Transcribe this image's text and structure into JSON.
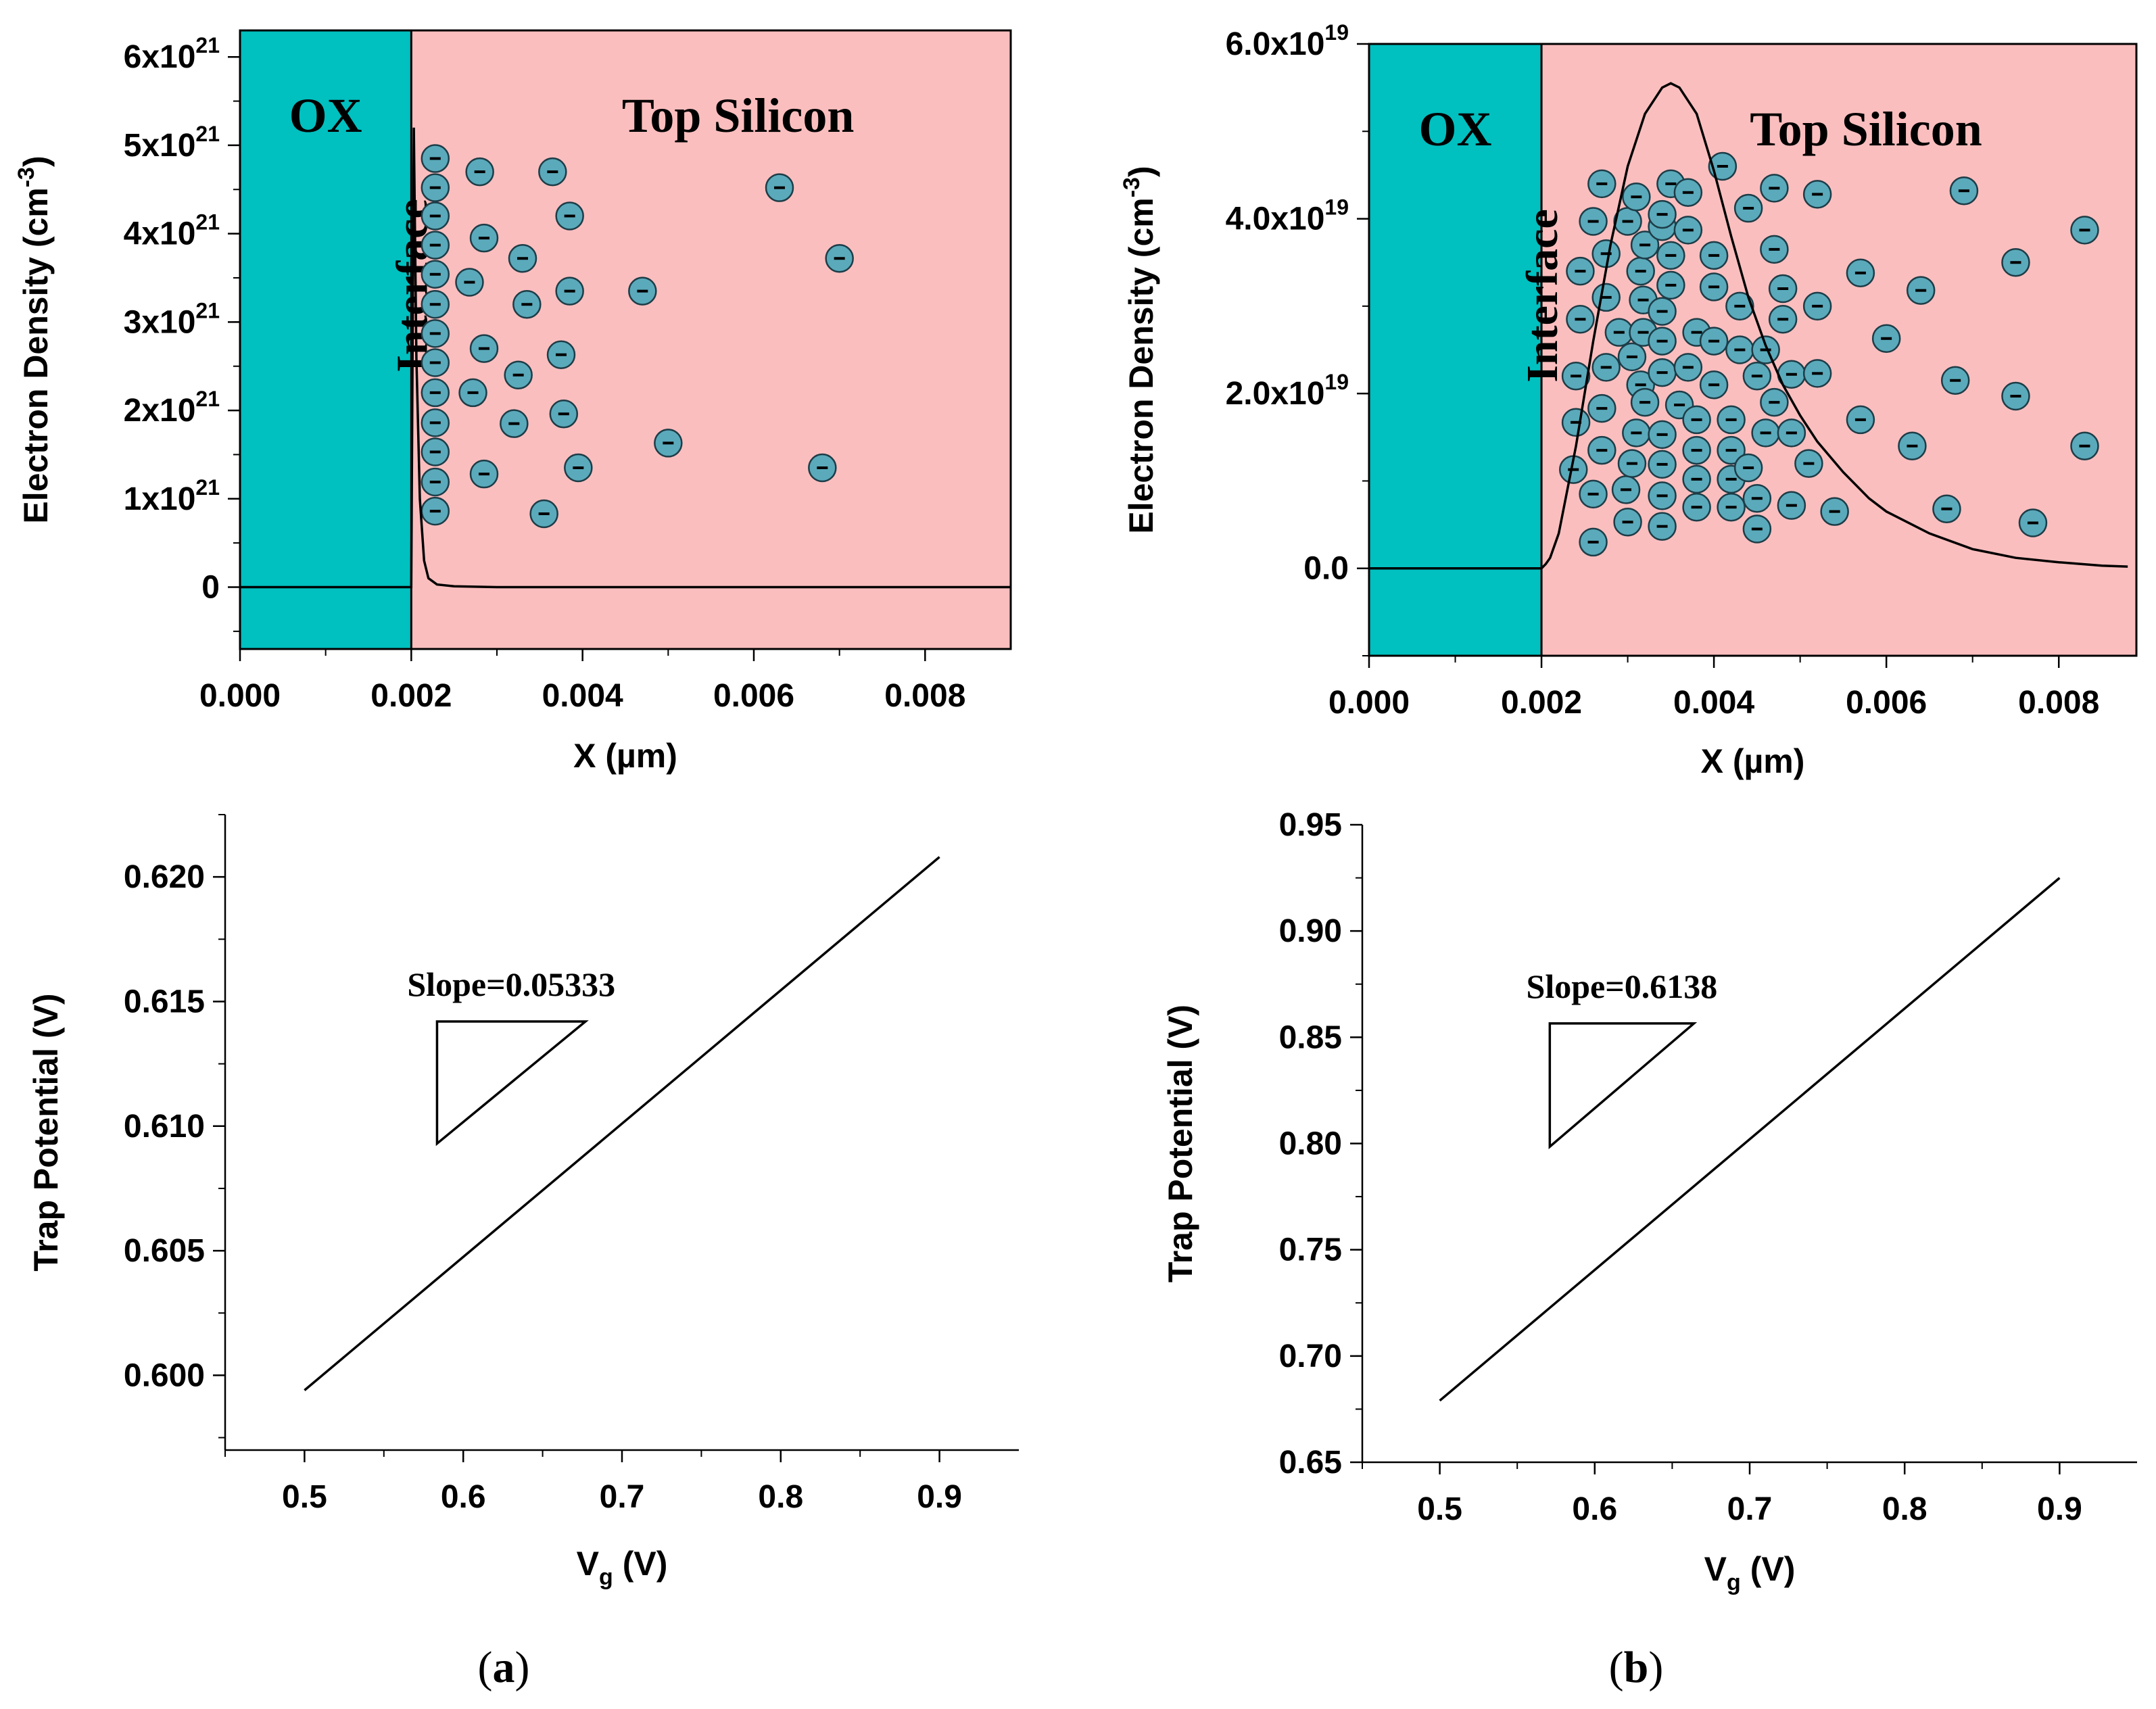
{
  "colors": {
    "oxide": "#00c0c0",
    "silicon": "#fbbebe",
    "electron": "#5aaabb",
    "line": "#000000"
  },
  "chart_data": [
    {
      "id": "a-top",
      "type": "line",
      "xlabel": "X (µm)",
      "ylabel_main": "Electron Density (cm",
      "ylabel_sup": "-3",
      "ylabel_end": ")",
      "xlim": [
        0,
        0.009
      ],
      "ylim": [
        -0.7,
        6.3
      ],
      "x_ticks": [
        0.0,
        0.002,
        0.004,
        0.006,
        0.008
      ],
      "x_tick_labels": [
        "0.000",
        "0.002",
        "0.004",
        "0.006",
        "0.008"
      ],
      "y_ticks": [
        0,
        1,
        2,
        3,
        4,
        5,
        6
      ],
      "y_tick_labels": [
        {
          "base": "0",
          "sup": ""
        },
        {
          "base": "1x10",
          "sup": "21"
        },
        {
          "base": "2x10",
          "sup": "21"
        },
        {
          "base": "3x10",
          "sup": "21"
        },
        {
          "base": "4x10",
          "sup": "21"
        },
        {
          "base": "5x10",
          "sup": "21"
        },
        {
          "base": "6x10",
          "sup": "21"
        }
      ],
      "y_unit": "1e21 cm^-3",
      "regions": [
        {
          "label": "OX",
          "x": [
            0,
            0.002
          ],
          "fill": "#00c0c0"
        },
        {
          "label": "Top Silicon",
          "x": [
            0.002,
            0.009
          ],
          "fill": "#fbbebe"
        }
      ],
      "interface_label": "Interface",
      "series": [
        {
          "name": "Electron density",
          "x": [
            0,
            0.002,
            0.00203,
            0.00206,
            0.0021,
            0.00215,
            0.0022,
            0.0023,
            0.0025,
            0.003,
            0.009
          ],
          "y": [
            0,
            0,
            5.2,
            2.6,
            1.0,
            0.3,
            0.1,
            0.03,
            0.01,
            0.0,
            0.0
          ]
        }
      ],
      "electrons": [
        [
          0.00228,
          4.85
        ],
        [
          0.00228,
          4.52
        ],
        [
          0.00228,
          4.2
        ],
        [
          0.00228,
          3.87
        ],
        [
          0.00228,
          3.54
        ],
        [
          0.00228,
          3.2
        ],
        [
          0.00228,
          2.87
        ],
        [
          0.00228,
          2.54
        ],
        [
          0.00228,
          2.2
        ],
        [
          0.00228,
          1.86
        ],
        [
          0.00228,
          1.53
        ],
        [
          0.00228,
          1.19
        ],
        [
          0.00228,
          0.86
        ],
        [
          0.0028,
          4.7
        ],
        [
          0.00365,
          4.7
        ],
        [
          0.00285,
          3.95
        ],
        [
          0.00385,
          4.2
        ],
        [
          0.0033,
          3.72
        ],
        [
          0.00268,
          3.45
        ],
        [
          0.00335,
          3.2
        ],
        [
          0.00385,
          3.35
        ],
        [
          0.00285,
          2.7
        ],
        [
          0.00375,
          2.63
        ],
        [
          0.00325,
          2.4
        ],
        [
          0.00272,
          2.2
        ],
        [
          0.00378,
          1.96
        ],
        [
          0.0032,
          1.85
        ],
        [
          0.00285,
          1.28
        ],
        [
          0.00395,
          1.35
        ],
        [
          0.00355,
          0.83
        ],
        [
          0.0047,
          3.35
        ],
        [
          0.005,
          1.63
        ],
        [
          0.0063,
          4.52
        ],
        [
          0.007,
          3.72
        ],
        [
          0.0068,
          1.35
        ]
      ]
    },
    {
      "id": "b-top",
      "type": "line",
      "xlabel": "X (µm)",
      "ylabel_main": "Electron Density (cm",
      "ylabel_sup": "-3",
      "ylabel_end": ")",
      "xlim": [
        0,
        0.0089
      ],
      "ylim": [
        -1.0,
        6.0
      ],
      "x_ticks": [
        0.0,
        0.002,
        0.004,
        0.006,
        0.008
      ],
      "x_tick_labels": [
        "0.000",
        "0.002",
        "0.004",
        "0.006",
        "0.008"
      ],
      "y_ticks": [
        0,
        2,
        4,
        6
      ],
      "y_tick_labels": [
        {
          "base": "0.0",
          "sup": ""
        },
        {
          "base": "2.0x10",
          "sup": "19"
        },
        {
          "base": "4.0x10",
          "sup": "19"
        },
        {
          "base": "6.0x10",
          "sup": "19"
        }
      ],
      "y_unit": "1e19 cm^-3",
      "regions": [
        {
          "label": "OX",
          "x": [
            0,
            0.002
          ],
          "fill": "#00c0c0"
        },
        {
          "label": "Top Silicon",
          "x": [
            0.002,
            0.0089
          ],
          "fill": "#fbbebe"
        }
      ],
      "interface_label": "Interface",
      "series": [
        {
          "name": "Electron density",
          "x": [
            0,
            0.002,
            0.00205,
            0.0021,
            0.0022,
            0.0024,
            0.0026,
            0.0028,
            0.003,
            0.0032,
            0.0034,
            0.0035,
            0.0036,
            0.0038,
            0.004,
            0.0042,
            0.0044,
            0.0046,
            0.0048,
            0.005,
            0.0052,
            0.0055,
            0.0058,
            0.006,
            0.0065,
            0.007,
            0.0075,
            0.008,
            0.0085,
            0.0088
          ],
          "y": [
            0,
            0,
            0.05,
            0.12,
            0.4,
            1.4,
            2.6,
            3.7,
            4.6,
            5.2,
            5.5,
            5.55,
            5.5,
            5.2,
            4.55,
            3.8,
            3.1,
            2.55,
            2.1,
            1.75,
            1.45,
            1.1,
            0.8,
            0.65,
            0.4,
            0.22,
            0.12,
            0.07,
            0.03,
            0.02
          ]
        }
      ],
      "electrons": [
        [
          0.00245,
          3.4
        ],
        [
          0.00245,
          2.85
        ],
        [
          0.0024,
          2.2
        ],
        [
          0.0024,
          1.67
        ],
        [
          0.00237,
          1.13
        ],
        [
          0.0026,
          0.3
        ],
        [
          0.0026,
          0.85
        ],
        [
          0.0026,
          3.97
        ],
        [
          0.0027,
          4.4
        ],
        [
          0.0027,
          1.35
        ],
        [
          0.0027,
          1.83
        ],
        [
          0.00275,
          2.3
        ],
        [
          0.00275,
          3.1
        ],
        [
          0.00275,
          3.6
        ],
        [
          0.0029,
          2.7
        ],
        [
          0.00298,
          0.9
        ],
        [
          0.003,
          0.53
        ],
        [
          0.003,
          3.97
        ],
        [
          0.00305,
          1.2
        ],
        [
          0.00305,
          2.42
        ],
        [
          0.0031,
          1.55
        ],
        [
          0.0031,
          4.25
        ],
        [
          0.00315,
          2.1
        ],
        [
          0.00315,
          3.4
        ],
        [
          0.00318,
          2.7
        ],
        [
          0.00318,
          3.07
        ],
        [
          0.0032,
          3.7
        ],
        [
          0.0032,
          1.9
        ],
        [
          0.0034,
          0.48
        ],
        [
          0.0034,
          0.83
        ],
        [
          0.0034,
          1.19
        ],
        [
          0.0034,
          1.53
        ],
        [
          0.0034,
          2.24
        ],
        [
          0.0034,
          2.6
        ],
        [
          0.0034,
          2.94
        ],
        [
          0.0035,
          3.24
        ],
        [
          0.0035,
          3.58
        ],
        [
          0.0034,
          3.91
        ],
        [
          0.0034,
          4.05
        ],
        [
          0.0035,
          4.4
        ],
        [
          0.0036,
          1.87
        ],
        [
          0.0037,
          2.3
        ],
        [
          0.0037,
          4.3
        ],
        [
          0.0037,
          3.87
        ],
        [
          0.0038,
          0.7
        ],
        [
          0.0038,
          1.02
        ],
        [
          0.0038,
          1.35
        ],
        [
          0.0038,
          1.7
        ],
        [
          0.0038,
          2.7
        ],
        [
          0.004,
          3.22
        ],
        [
          0.004,
          3.58
        ],
        [
          0.004,
          2.1
        ],
        [
          0.004,
          2.6
        ],
        [
          0.0041,
          4.6
        ],
        [
          0.0042,
          0.7
        ],
        [
          0.0042,
          1.02
        ],
        [
          0.0042,
          1.35
        ],
        [
          0.0042,
          1.7
        ],
        [
          0.0043,
          2.5
        ],
        [
          0.0043,
          3.0
        ],
        [
          0.0044,
          4.12
        ],
        [
          0.0044,
          1.15
        ],
        [
          0.0045,
          0.45
        ],
        [
          0.0045,
          0.8
        ],
        [
          0.0045,
          2.2
        ],
        [
          0.0046,
          1.55
        ],
        [
          0.0046,
          2.5
        ],
        [
          0.0047,
          4.35
        ],
        [
          0.0047,
          3.65
        ],
        [
          0.0047,
          1.9
        ],
        [
          0.0048,
          3.2
        ],
        [
          0.0048,
          2.85
        ],
        [
          0.0049,
          0.72
        ],
        [
          0.0049,
          1.55
        ],
        [
          0.0049,
          2.22
        ],
        [
          0.0051,
          1.2
        ],
        [
          0.0052,
          4.28
        ],
        [
          0.0052,
          2.23
        ],
        [
          0.0052,
          3.0
        ],
        [
          0.0054,
          0.65
        ],
        [
          0.0057,
          3.38
        ],
        [
          0.0057,
          1.7
        ],
        [
          0.006,
          2.63
        ],
        [
          0.0063,
          1.4
        ],
        [
          0.0064,
          3.18
        ],
        [
          0.0067,
          0.68
        ],
        [
          0.0068,
          2.15
        ],
        [
          0.0069,
          4.32
        ],
        [
          0.0075,
          3.5
        ],
        [
          0.0075,
          1.97
        ],
        [
          0.0077,
          0.52
        ],
        [
          0.0083,
          3.87
        ],
        [
          0.0083,
          1.4
        ]
      ]
    },
    {
      "id": "a-bottom",
      "type": "line",
      "xlabel_main": "V",
      "xlabel_sub": "g",
      "xlabel_end": " (V)",
      "ylabel": "Trap Potential (V)",
      "xlim": [
        0.45,
        0.95
      ],
      "ylim": [
        0.597,
        0.6225
      ],
      "x_ticks": [
        0.5,
        0.6,
        0.7,
        0.8,
        0.9
      ],
      "x_tick_labels": [
        "0.5",
        "0.6",
        "0.7",
        "0.8",
        "0.9"
      ],
      "y_ticks": [
        0.6,
        0.605,
        0.61,
        0.615,
        0.62
      ],
      "y_tick_labels": [
        "0.600",
        "0.605",
        "0.610",
        "0.615",
        "0.620"
      ],
      "series": [
        {
          "name": "Trap potential",
          "x": [
            0.5,
            0.9
          ],
          "y": [
            0.5994,
            0.6208
          ]
        }
      ],
      "slope_text": "Slope=0.05333",
      "slope_triangle": {
        "x": [
          0.5835,
          0.677
        ],
        "y": [
          0.6093,
          0.6142
        ]
      }
    },
    {
      "id": "b-bottom",
      "type": "line",
      "xlabel_main": "V",
      "xlabel_sub": "g",
      "xlabel_end": " (V)",
      "ylabel": "Trap Potential (V)",
      "xlim": [
        0.45,
        0.95
      ],
      "ylim": [
        0.65,
        0.95
      ],
      "x_ticks": [
        0.5,
        0.6,
        0.7,
        0.8,
        0.9
      ],
      "x_tick_labels": [
        "0.5",
        "0.6",
        "0.7",
        "0.8",
        "0.9"
      ],
      "y_ticks": [
        0.65,
        0.7,
        0.75,
        0.8,
        0.85,
        0.9,
        0.95
      ],
      "y_tick_labels": [
        "0.65",
        "0.70",
        "0.75",
        "0.80",
        "0.85",
        "0.90",
        "0.95"
      ],
      "series": [
        {
          "name": "Trap potential",
          "x": [
            0.5,
            0.9
          ],
          "y": [
            0.679,
            0.925
          ]
        }
      ],
      "slope_text": "Slope=0.6138",
      "slope_triangle": {
        "x": [
          0.571,
          0.664
        ],
        "y": [
          0.7985,
          0.8565
        ]
      }
    }
  ],
  "panel_labels": {
    "a": {
      "open": "(",
      "letter": "a",
      "close": ")"
    },
    "b": {
      "open": "(",
      "letter": "b",
      "close": ")"
    }
  }
}
